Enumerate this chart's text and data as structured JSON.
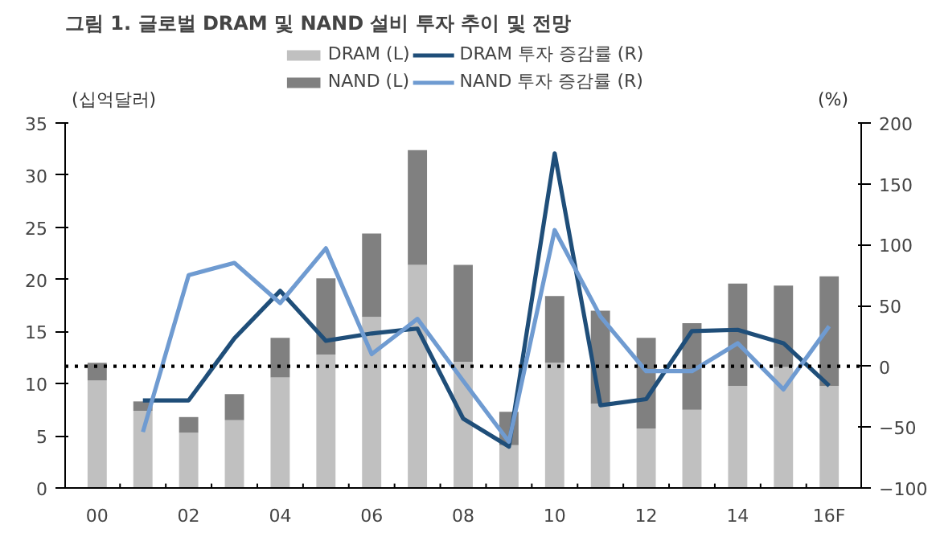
{
  "chart_data": {
    "type": "bar",
    "title": "그림 1. 글로벌 DRAM 및 NAND 설비 투자 추이 및 전망",
    "ylabel": "(십억달러)",
    "y2label": "(%)",
    "categories": [
      "00",
      null,
      "02",
      null,
      "04",
      null,
      "06",
      null,
      "08",
      null,
      "10",
      null,
      "12",
      null,
      "14",
      null,
      "16F"
    ],
    "stacked": true,
    "legend": "top",
    "grid": false,
    "ylim": [
      0,
      35
    ],
    "yticks": [
      0,
      5,
      10,
      15,
      20,
      25,
      30,
      35
    ],
    "y2lim": [
      -100,
      200
    ],
    "y2ticks": [
      -100,
      -50,
      0,
      50,
      100,
      150,
      200
    ],
    "ref_lines": [
      {
        "axis": "y2",
        "value": 0,
        "line_style": "dotted",
        "color": "#000000"
      }
    ],
    "series": [
      {
        "name": "DRAM (L)",
        "color": "#c0c0c0",
        "values": [
          10.3,
          7.4,
          5.3,
          6.5,
          10.6,
          12.8,
          16.4,
          21.4,
          12.1,
          4.1,
          12.0,
          8.1,
          5.7,
          7.5,
          9.8,
          11.6,
          9.8
        ]
      },
      {
        "name": "NAND (L)",
        "color": "#808080",
        "values": [
          1.7,
          0.9,
          1.5,
          2.5,
          3.8,
          7.3,
          8.0,
          11.0,
          9.3,
          3.2,
          6.4,
          8.9,
          8.7,
          8.3,
          9.8,
          7.8,
          10.5
        ]
      },
      {
        "name": "DRAM 투자 증감률 (R)",
        "type": "line",
        "axis": "y2",
        "color": "#1f4e79",
        "values": [
          null,
          -28,
          -28,
          23,
          62,
          21,
          27,
          31,
          -43,
          -66,
          175,
          -32,
          -27,
          29,
          30,
          19,
          -16
        ]
      },
      {
        "name": "NAND 투자 증감률 (R)",
        "type": "line",
        "axis": "y2",
        "color": "#6f9bd1",
        "values": [
          null,
          -54,
          75,
          85,
          52,
          97,
          10,
          39,
          -12,
          -62,
          112,
          41,
          -4,
          -4,
          19,
          -19,
          33
        ]
      }
    ]
  }
}
